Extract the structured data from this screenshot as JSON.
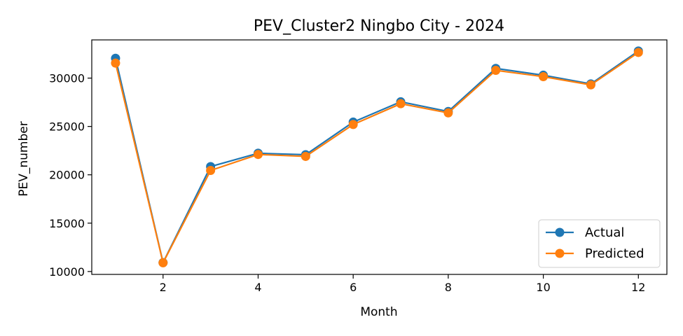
{
  "chart_data": {
    "type": "line",
    "title": "PEV_Cluster2 Ningbo City - 2024",
    "xlabel": "Month",
    "ylabel": "PEV_number",
    "x": [
      1,
      2,
      3,
      4,
      5,
      6,
      7,
      8,
      9,
      10,
      11,
      12
    ],
    "xlim": [
      0.5,
      12.6
    ],
    "ylim": [
      9700,
      33950
    ],
    "xticks": [
      2,
      4,
      6,
      8,
      10,
      12
    ],
    "xtick_labels": [
      "2",
      "4",
      "6",
      "8",
      "10",
      "12"
    ],
    "yticks": [
      10000,
      15000,
      20000,
      25000,
      30000
    ],
    "ytick_labels": [
      "10000",
      "15000",
      "20000",
      "25000",
      "30000"
    ],
    "series": [
      {
        "name": "Actual",
        "color": "#1f77b4",
        "marker": "circle",
        "values": [
          32050,
          10920,
          20850,
          22230,
          22080,
          25450,
          27550,
          26550,
          31000,
          30300,
          29400,
          32800
        ]
      },
      {
        "name": "Predicted",
        "color": "#ff7f0e",
        "marker": "circle",
        "values": [
          31550,
          10900,
          20450,
          22100,
          21900,
          25200,
          27350,
          26400,
          30800,
          30150,
          29300,
          32650
        ]
      }
    ],
    "grid": false,
    "legend": "lower-right"
  }
}
